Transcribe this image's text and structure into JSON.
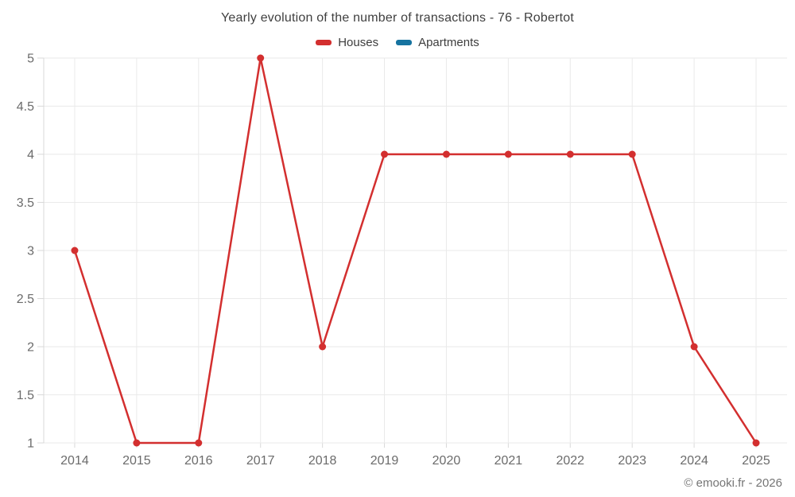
{
  "chart_data": {
    "type": "line",
    "title": "Yearly evolution of the number of transactions - 76 - Robertot",
    "categories": [
      "2014",
      "2015",
      "2016",
      "2017",
      "2018",
      "2019",
      "2020",
      "2021",
      "2022",
      "2023",
      "2024",
      "2025"
    ],
    "y_ticks": [
      "1",
      "1.5",
      "2",
      "2.5",
      "3",
      "3.5",
      "4",
      "4.5",
      "5"
    ],
    "ylim": [
      1,
      5
    ],
    "xlabel": "",
    "ylabel": "",
    "grid": true,
    "legend_position": "top",
    "series": [
      {
        "name": "Houses",
        "color": "#d32f2f",
        "values": [
          3,
          1,
          1,
          5,
          2,
          4,
          4,
          4,
          4,
          4,
          2,
          1
        ]
      },
      {
        "name": "Apartments",
        "color": "#1673a0",
        "values": []
      }
    ],
    "colors": {
      "grid": "#eaeaea",
      "axis": "#d9d9d9",
      "tick_label": "#6b6b6b",
      "title": "#3f3f3f"
    }
  },
  "footer": {
    "copyright": "© emooki.fr - 2026"
  }
}
